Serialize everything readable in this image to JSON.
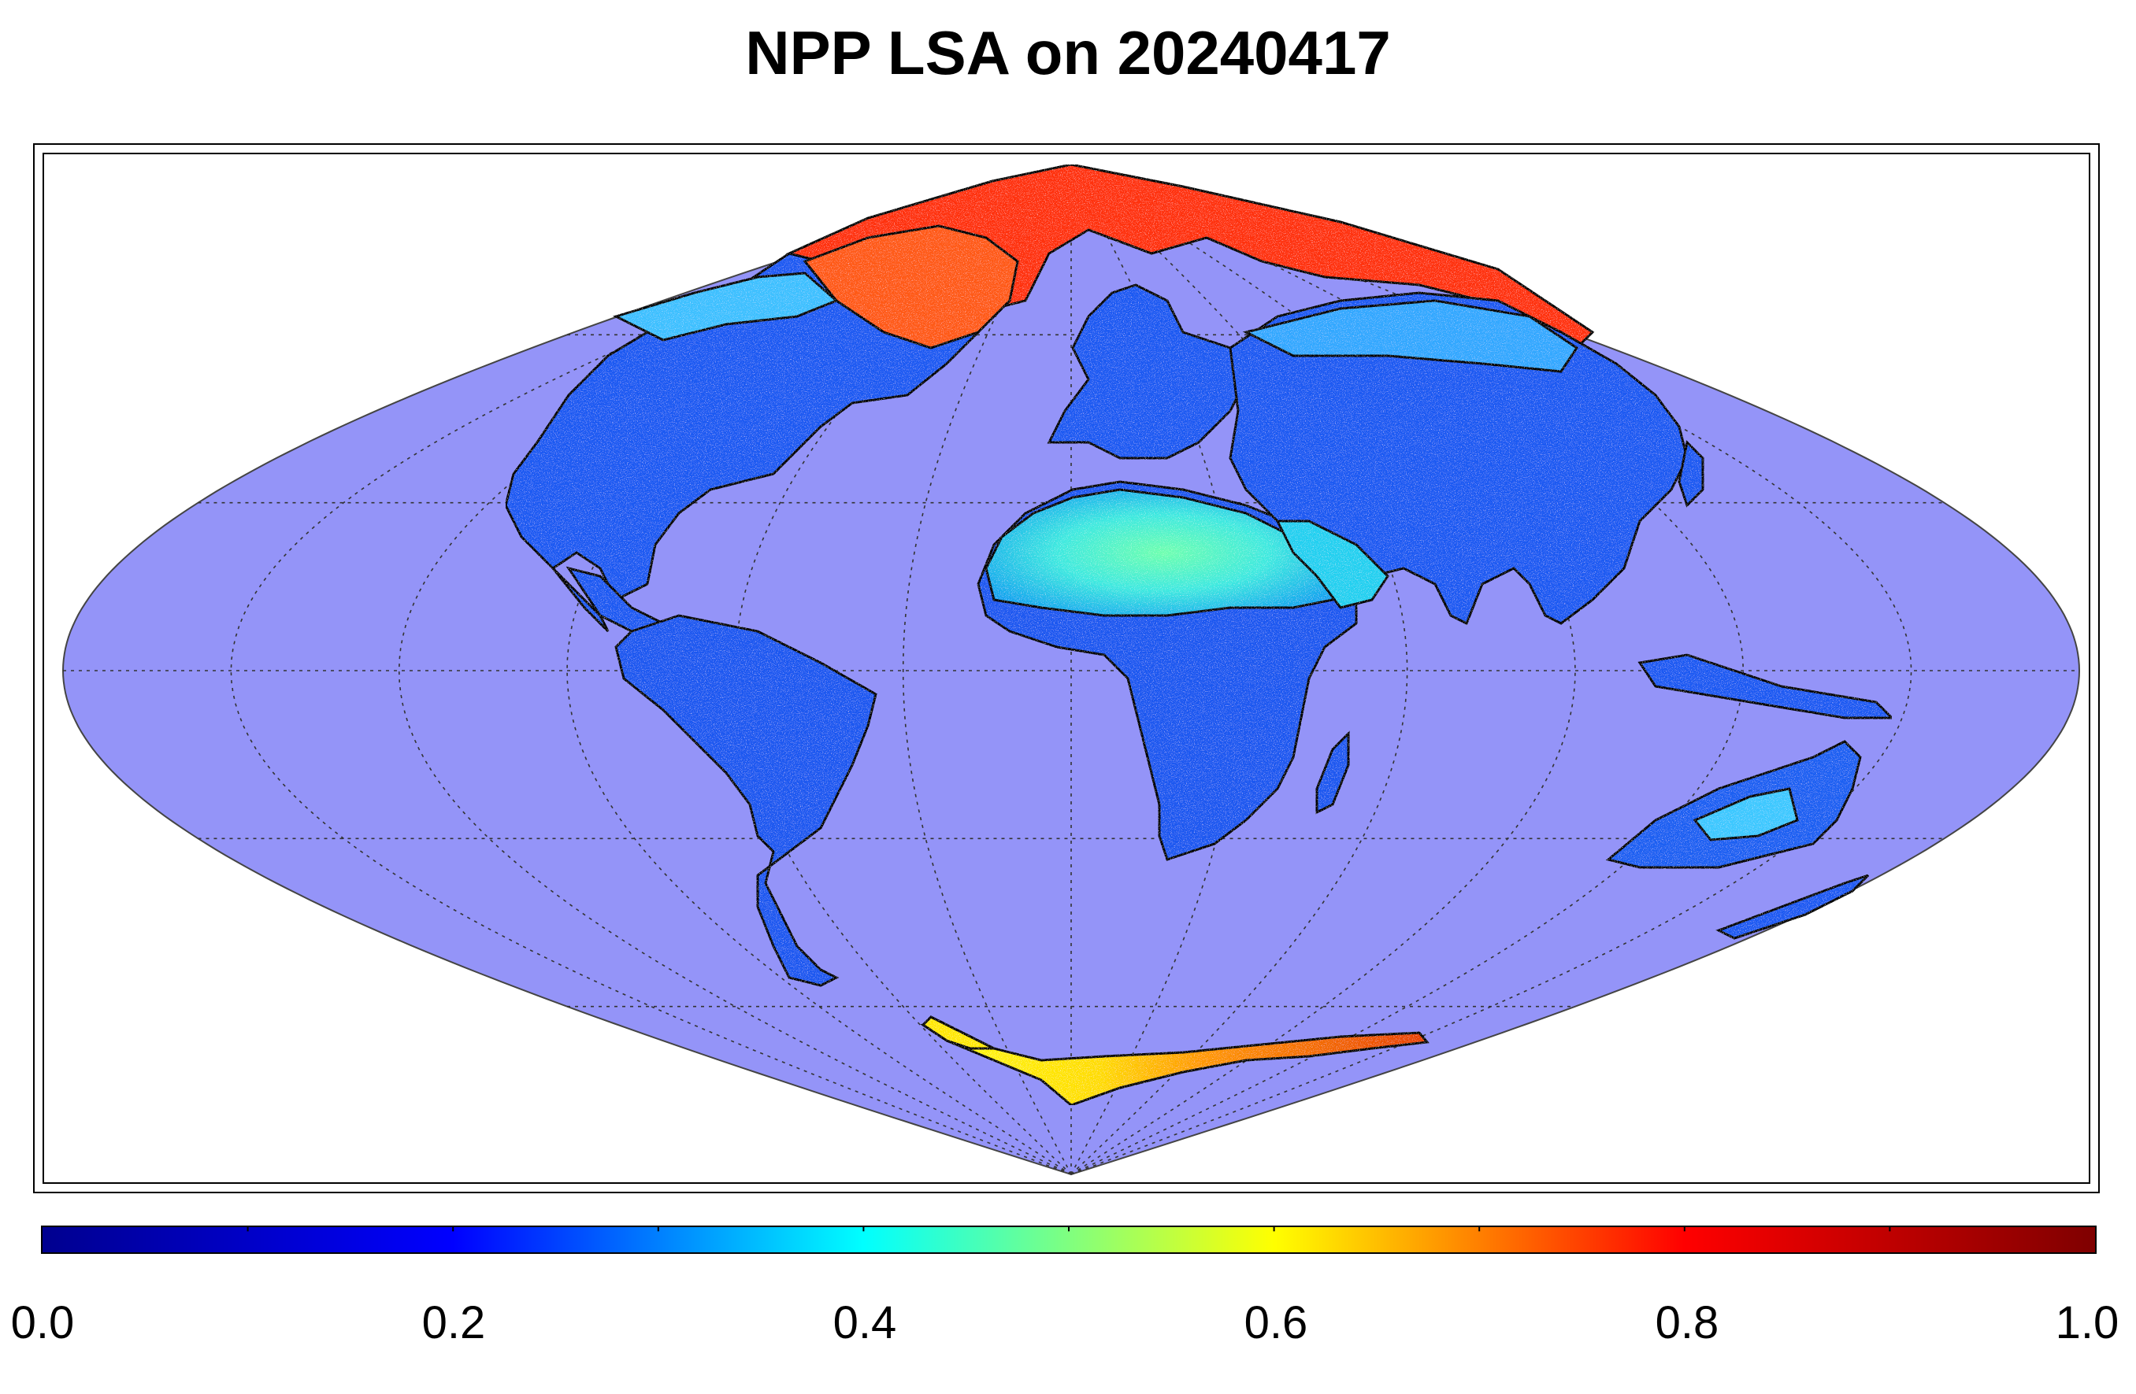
{
  "title": "NPP LSA on 20240417",
  "map": {
    "projection": "sinusoidal",
    "ocean_color": "#9494f8",
    "graticule": "dotted",
    "land_outline_color": "#000000"
  },
  "colorbar": {
    "colormap": "jet",
    "min": 0.0,
    "max": 1.0,
    "ticks": [
      "0.0",
      "0.2",
      "0.4",
      "0.6",
      "0.8",
      "1.0"
    ],
    "stops": [
      "#00008f",
      "#0000ff",
      "#00ffff",
      "#ffff00",
      "#ff0000",
      "#7f0000"
    ]
  }
}
